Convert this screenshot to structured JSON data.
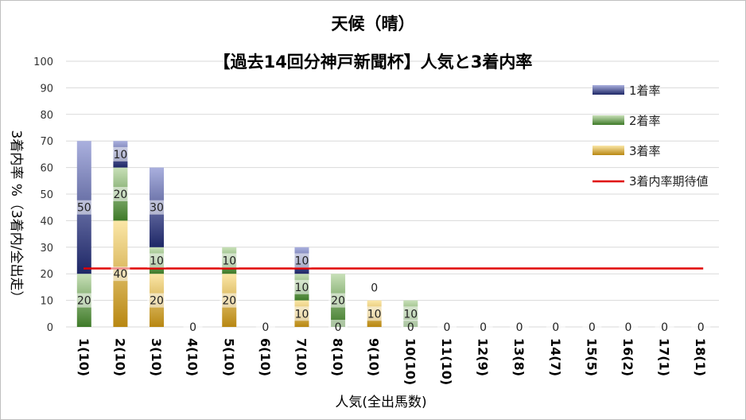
{
  "chart_data": {
    "type": "bar",
    "stacked": true,
    "title": "天候（晴）",
    "subtitle": "【過去14回分神戸新聞杯】人気と3着内率",
    "xlabel": "人気(全出馬数)",
    "ylabel": "3着内率 %（3着内/全出走）",
    "ylim": [
      0,
      100
    ],
    "yticks": [
      0,
      10,
      20,
      30,
      40,
      50,
      60,
      70,
      80,
      90,
      100
    ],
    "categories": [
      "1(10)",
      "2(10)",
      "3(10)",
      "4(10)",
      "5(10)",
      "6(10)",
      "7(10)",
      "8(10)",
      "9(10)",
      "10(10)",
      "11(10)",
      "12(9)",
      "13(8)",
      "14(7)",
      "15(5)",
      "16(2)",
      "17(1)",
      "18(1)"
    ],
    "series": [
      {
        "name": "3着率",
        "color": "#c9a227",
        "values": [
          0,
          40,
          20,
          0,
          20,
          0,
          10,
          0,
          10,
          0,
          0,
          0,
          0,
          0,
          0,
          0,
          0,
          0
        ]
      },
      {
        "name": "2着率",
        "color": "#5a9a3c",
        "values": [
          20,
          20,
          10,
          0,
          10,
          0,
          10,
          20,
          0,
          10,
          0,
          0,
          0,
          0,
          0,
          0,
          0,
          0
        ]
      },
      {
        "name": "1着率",
        "color": "#2b3a87",
        "values": [
          50,
          10,
          30,
          0,
          0,
          0,
          10,
          0,
          0,
          0,
          0,
          0,
          0,
          0,
          0,
          0,
          0,
          0
        ]
      }
    ],
    "expected_line": {
      "name": "3着内率期待値",
      "color": "#e00000",
      "value": 22
    },
    "legend_position": "right",
    "legend": [
      "1着率",
      "2着率",
      "3着率",
      "3着内率期待値"
    ],
    "grid": true
  }
}
